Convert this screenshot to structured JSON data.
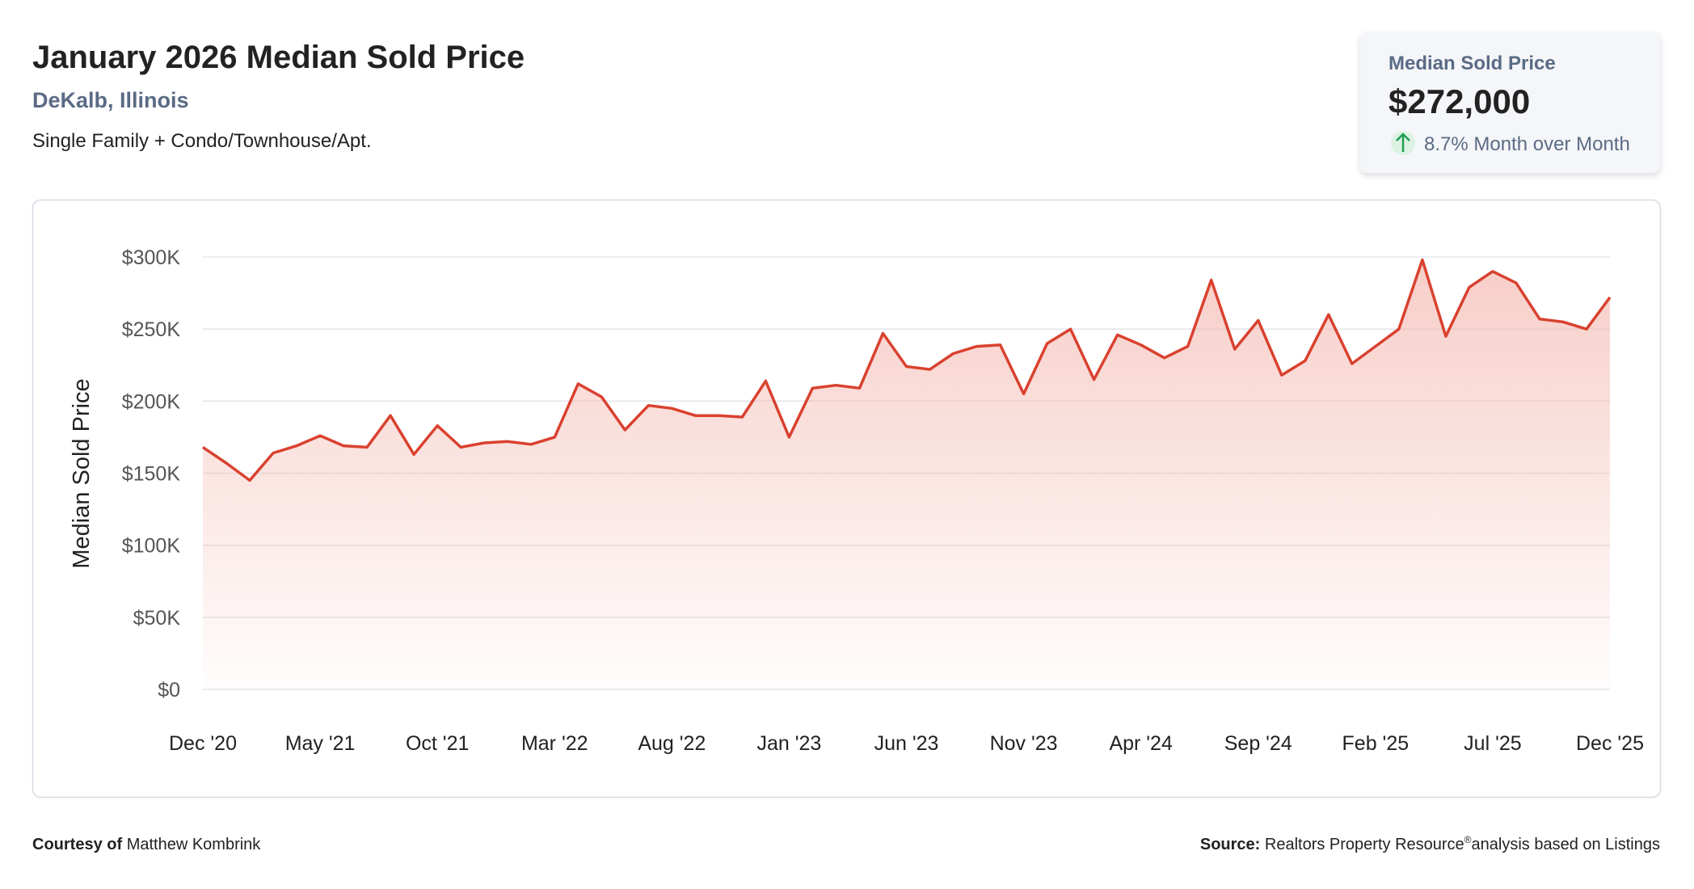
{
  "header": {
    "title": "January 2026 Median Sold Price",
    "location": "DeKalb, Illinois",
    "property_types": "Single Family + Condo/Townhouse/Apt."
  },
  "summary_card": {
    "label": "Median Sold Price",
    "value": "$272,000",
    "change": "8.7% Month over Month"
  },
  "chart_data": {
    "type": "line",
    "y_axis_label": "Median Sold Price",
    "color": "#d9412f",
    "grid": true,
    "ylim": [
      0,
      300000
    ],
    "yticks": [
      {
        "value": 0,
        "label": "$0"
      },
      {
        "value": 50000,
        "label": "$50K"
      },
      {
        "value": 100000,
        "label": "$100K"
      },
      {
        "value": 150000,
        "label": "$150K"
      },
      {
        "value": 200000,
        "label": "$200K"
      },
      {
        "value": 250000,
        "label": "$250K"
      },
      {
        "value": 300000,
        "label": "$300K"
      }
    ],
    "categories": [
      "Dec '20",
      null,
      null,
      null,
      null,
      "May '21",
      null,
      null,
      null,
      null,
      "Oct '21",
      null,
      null,
      null,
      null,
      "Mar '22",
      null,
      null,
      null,
      null,
      "Aug '22",
      null,
      null,
      null,
      null,
      "Jan '23",
      null,
      null,
      null,
      null,
      "Jun '23",
      null,
      null,
      null,
      null,
      "Nov '23",
      null,
      null,
      null,
      null,
      "Apr '24",
      null,
      null,
      null,
      null,
      "Sep '24",
      null,
      null,
      null,
      null,
      "Feb '25",
      null,
      null,
      null,
      null,
      "Jul '25",
      null,
      null,
      null,
      null,
      "Dec '25"
    ],
    "series": [
      {
        "name": "Median Sold Price",
        "color": "#d9412f",
        "values": [
          168000,
          157000,
          145000,
          164000,
          169000,
          176000,
          169000,
          168000,
          190000,
          163000,
          183000,
          168000,
          171000,
          172000,
          170000,
          175000,
          212000,
          203000,
          180000,
          197000,
          195000,
          190000,
          190000,
          189000,
          214000,
          175000,
          209000,
          211000,
          209000,
          247000,
          224000,
          222000,
          233000,
          238000,
          239000,
          205000,
          240000,
          250000,
          215000,
          246000,
          239000,
          230000,
          238000,
          284000,
          236000,
          256000,
          218000,
          228000,
          260000,
          226000,
          238000,
          250000,
          298000,
          245000,
          279000,
          290000,
          282000,
          257000,
          255000,
          250000,
          272000
        ]
      }
    ]
  },
  "footer": {
    "courtesy_label": "Courtesy of",
    "courtesy_name": "Matthew Kombrink",
    "source_label": "Source:",
    "source_text": "Realtors Property Resource",
    "source_mark": "®",
    "source_rest": "analysis based on Listings"
  }
}
